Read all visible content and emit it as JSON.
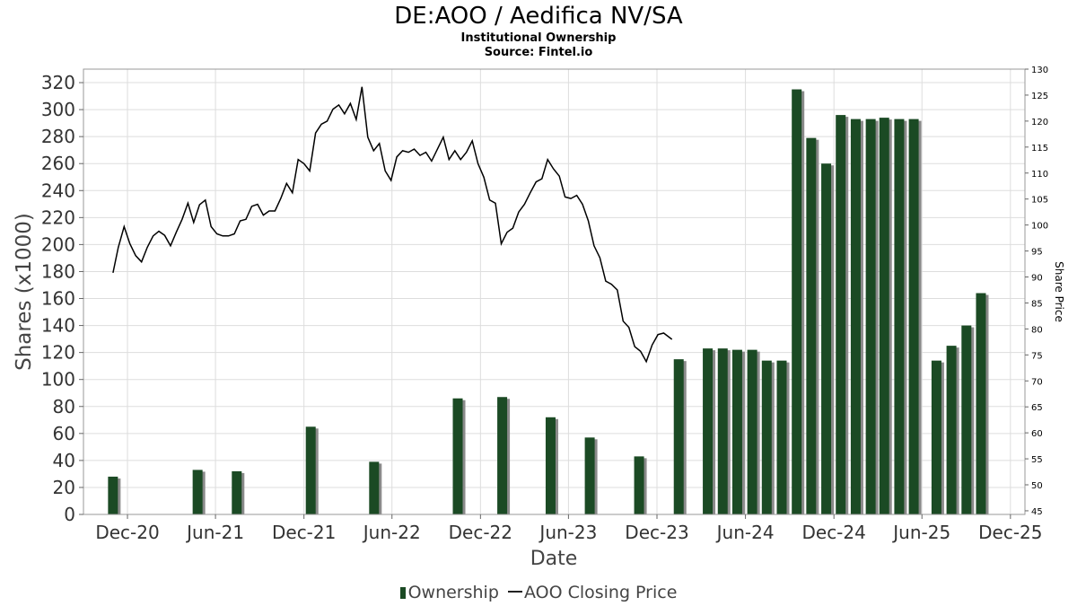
{
  "header": {
    "title": "DE:AOO / Aedifica NV/SA",
    "subtitle1": "Institutional Ownership",
    "subtitle2": "Source: Fintel.io"
  },
  "colors": {
    "bar": "#1b4a24",
    "bar_shadow": "#8a8a8a",
    "line": "#000000",
    "grid": "#dddddd"
  },
  "chart_data": {
    "type": "bar",
    "xlabel": "Date",
    "ylabel": "Shares (x1000)",
    "y2label": "Share Price",
    "ylim": [
      0,
      330
    ],
    "y2lim": [
      44.3,
      130
    ],
    "xlim": [
      "2020-09-01",
      "2025-12-31"
    ],
    "grid": true,
    "legend_placement": "bottom",
    "x_ticks": [
      {
        "date": "2020-12-01",
        "label": "Dec-20"
      },
      {
        "date": "2021-06-01",
        "label": "Jun-21"
      },
      {
        "date": "2021-12-01",
        "label": "Dec-21"
      },
      {
        "date": "2022-06-01",
        "label": "Jun-22"
      },
      {
        "date": "2022-12-01",
        "label": "Dec-22"
      },
      {
        "date": "2023-06-01",
        "label": "Jun-23"
      },
      {
        "date": "2023-12-01",
        "label": "Dec-23"
      },
      {
        "date": "2024-06-01",
        "label": "Jun-24"
      },
      {
        "date": "2024-12-01",
        "label": "Dec-24"
      },
      {
        "date": "2025-06-01",
        "label": "Jun-25"
      },
      {
        "date": "2025-12-01",
        "label": "Dec-25"
      }
    ],
    "y_ticks": [
      "0",
      "20",
      "40",
      "60",
      "80",
      "100",
      "120",
      "140",
      "160",
      "180",
      "200",
      "220",
      "240",
      "260",
      "280",
      "300",
      "320"
    ],
    "y2_ticks": [
      "45",
      "50",
      "55",
      "60",
      "65",
      "70",
      "75",
      "80",
      "85",
      "90",
      "95",
      "100",
      "105",
      "110",
      "115",
      "120",
      "125",
      "130"
    ],
    "series": [
      {
        "name": "Ownership",
        "kind": "bar",
        "points": [
          {
            "date": "2020-11-01",
            "value": 28
          },
          {
            "date": "2021-04-25",
            "value": 33
          },
          {
            "date": "2021-07-15",
            "value": 32
          },
          {
            "date": "2021-12-15",
            "value": 65
          },
          {
            "date": "2022-04-25",
            "value": 39
          },
          {
            "date": "2022-10-15",
            "value": 86
          },
          {
            "date": "2023-01-15",
            "value": 87
          },
          {
            "date": "2023-04-25",
            "value": 72
          },
          {
            "date": "2023-07-15",
            "value": 57
          },
          {
            "date": "2023-10-25",
            "value": 43
          },
          {
            "date": "2024-01-15",
            "value": 115
          },
          {
            "date": "2024-03-15",
            "value": 123
          },
          {
            "date": "2024-04-15",
            "value": 123
          },
          {
            "date": "2024-05-15",
            "value": 122
          },
          {
            "date": "2024-06-15",
            "value": 122
          },
          {
            "date": "2024-07-15",
            "value": 114
          },
          {
            "date": "2024-08-15",
            "value": 114
          },
          {
            "date": "2024-09-15",
            "value": 315
          },
          {
            "date": "2024-10-15",
            "value": 279
          },
          {
            "date": "2024-11-15",
            "value": 260
          },
          {
            "date": "2024-12-15",
            "value": 296
          },
          {
            "date": "2025-01-15",
            "value": 293
          },
          {
            "date": "2025-02-15",
            "value": 293
          },
          {
            "date": "2025-03-15",
            "value": 294
          },
          {
            "date": "2025-04-15",
            "value": 293
          },
          {
            "date": "2025-05-15",
            "value": 293
          },
          {
            "date": "2025-07-01",
            "value": 114
          },
          {
            "date": "2025-08-01",
            "value": 125
          },
          {
            "date": "2025-09-01",
            "value": 140
          },
          {
            "date": "2025-10-01",
            "value": 164
          }
        ]
      },
      {
        "name": "AOO Closing Price",
        "kind": "line",
        "axis": "right",
        "points": [
          {
            "date": "2020-11-01",
            "value": 90.8
          },
          {
            "date": "2020-11-12",
            "value": 95.7
          },
          {
            "date": "2020-11-24",
            "value": 99.7
          },
          {
            "date": "2020-12-06",
            "value": 96.4
          },
          {
            "date": "2020-12-18",
            "value": 94.1
          },
          {
            "date": "2020-12-30",
            "value": 92.9
          },
          {
            "date": "2021-01-11",
            "value": 95.7
          },
          {
            "date": "2021-01-23",
            "value": 97.9
          },
          {
            "date": "2021-02-04",
            "value": 98.8
          },
          {
            "date": "2021-02-16",
            "value": 98.0
          },
          {
            "date": "2021-02-28",
            "value": 96.0
          },
          {
            "date": "2021-03-12",
            "value": 98.6
          },
          {
            "date": "2021-03-24",
            "value": 101.1
          },
          {
            "date": "2021-04-05",
            "value": 104.2
          },
          {
            "date": "2021-04-17",
            "value": 100.5
          },
          {
            "date": "2021-04-29",
            "value": 103.9
          },
          {
            "date": "2021-05-11",
            "value": 104.8
          },
          {
            "date": "2021-05-23",
            "value": 99.7
          },
          {
            "date": "2021-06-04",
            "value": 98.3
          },
          {
            "date": "2021-06-16",
            "value": 97.9
          },
          {
            "date": "2021-06-28",
            "value": 97.9
          },
          {
            "date": "2021-07-10",
            "value": 98.3
          },
          {
            "date": "2021-07-22",
            "value": 100.8
          },
          {
            "date": "2021-08-03",
            "value": 101.1
          },
          {
            "date": "2021-08-15",
            "value": 103.6
          },
          {
            "date": "2021-08-27",
            "value": 104.0
          },
          {
            "date": "2021-09-08",
            "value": 101.9
          },
          {
            "date": "2021-09-20",
            "value": 102.7
          },
          {
            "date": "2021-10-02",
            "value": 102.7
          },
          {
            "date": "2021-10-14",
            "value": 105.1
          },
          {
            "date": "2021-10-26",
            "value": 108.0
          },
          {
            "date": "2021-11-07",
            "value": 106.2
          },
          {
            "date": "2021-11-19",
            "value": 112.6
          },
          {
            "date": "2021-12-01",
            "value": 111.8
          },
          {
            "date": "2021-12-13",
            "value": 110.4
          },
          {
            "date": "2021-12-25",
            "value": 117.7
          },
          {
            "date": "2022-01-06",
            "value": 119.4
          },
          {
            "date": "2022-01-18",
            "value": 120.0
          },
          {
            "date": "2022-01-30",
            "value": 122.3
          },
          {
            "date": "2022-02-11",
            "value": 123.1
          },
          {
            "date": "2022-02-23",
            "value": 121.4
          },
          {
            "date": "2022-03-07",
            "value": 123.4
          },
          {
            "date": "2022-03-19",
            "value": 120.3
          },
          {
            "date": "2022-03-31",
            "value": 126.6
          },
          {
            "date": "2022-04-12",
            "value": 116.9
          },
          {
            "date": "2022-04-24",
            "value": 114.3
          },
          {
            "date": "2022-05-06",
            "value": 115.7
          },
          {
            "date": "2022-05-18",
            "value": 110.4
          },
          {
            "date": "2022-05-30",
            "value": 108.6
          },
          {
            "date": "2022-06-11",
            "value": 113.1
          },
          {
            "date": "2022-06-23",
            "value": 114.3
          },
          {
            "date": "2022-07-05",
            "value": 114.0
          },
          {
            "date": "2022-07-17",
            "value": 114.6
          },
          {
            "date": "2022-07-29",
            "value": 113.4
          },
          {
            "date": "2022-08-10",
            "value": 114.0
          },
          {
            "date": "2022-08-22",
            "value": 112.3
          },
          {
            "date": "2022-09-03",
            "value": 114.6
          },
          {
            "date": "2022-09-15",
            "value": 116.9
          },
          {
            "date": "2022-09-27",
            "value": 112.6
          },
          {
            "date": "2022-10-09",
            "value": 114.3
          },
          {
            "date": "2022-10-21",
            "value": 112.6
          },
          {
            "date": "2022-11-02",
            "value": 114.0
          },
          {
            "date": "2022-11-14",
            "value": 116.2
          },
          {
            "date": "2022-11-26",
            "value": 111.8
          },
          {
            "date": "2022-12-08",
            "value": 109.2
          },
          {
            "date": "2022-12-20",
            "value": 104.8
          },
          {
            "date": "2023-01-01",
            "value": 104.2
          },
          {
            "date": "2023-01-13",
            "value": 96.4
          },
          {
            "date": "2023-01-25",
            "value": 98.6
          },
          {
            "date": "2023-02-06",
            "value": 99.4
          },
          {
            "date": "2023-02-18",
            "value": 102.5
          },
          {
            "date": "2023-03-02",
            "value": 104.0
          },
          {
            "date": "2023-03-14",
            "value": 106.2
          },
          {
            "date": "2023-03-26",
            "value": 108.3
          },
          {
            "date": "2023-04-07",
            "value": 108.9
          },
          {
            "date": "2023-04-19",
            "value": 112.6
          },
          {
            "date": "2023-05-01",
            "value": 110.8
          },
          {
            "date": "2023-05-13",
            "value": 109.4
          },
          {
            "date": "2023-05-25",
            "value": 105.4
          },
          {
            "date": "2023-06-06",
            "value": 105.1
          },
          {
            "date": "2023-06-18",
            "value": 105.7
          },
          {
            "date": "2023-06-30",
            "value": 104.0
          },
          {
            "date": "2023-07-12",
            "value": 100.8
          },
          {
            "date": "2023-07-24",
            "value": 96.0
          },
          {
            "date": "2023-08-05",
            "value": 93.7
          },
          {
            "date": "2023-08-17",
            "value": 89.2
          },
          {
            "date": "2023-08-29",
            "value": 88.6
          },
          {
            "date": "2023-09-10",
            "value": 87.5
          },
          {
            "date": "2023-09-22",
            "value": 81.5
          },
          {
            "date": "2023-10-04",
            "value": 80.3
          },
          {
            "date": "2023-10-16",
            "value": 76.6
          },
          {
            "date": "2023-10-28",
            "value": 75.7
          },
          {
            "date": "2023-11-09",
            "value": 73.7
          },
          {
            "date": "2023-11-21",
            "value": 76.9
          },
          {
            "date": "2023-12-03",
            "value": 78.9
          },
          {
            "date": "2023-12-15",
            "value": 79.2
          },
          {
            "date": "2024-01-01",
            "value": 78.0
          }
        ]
      }
    ]
  }
}
